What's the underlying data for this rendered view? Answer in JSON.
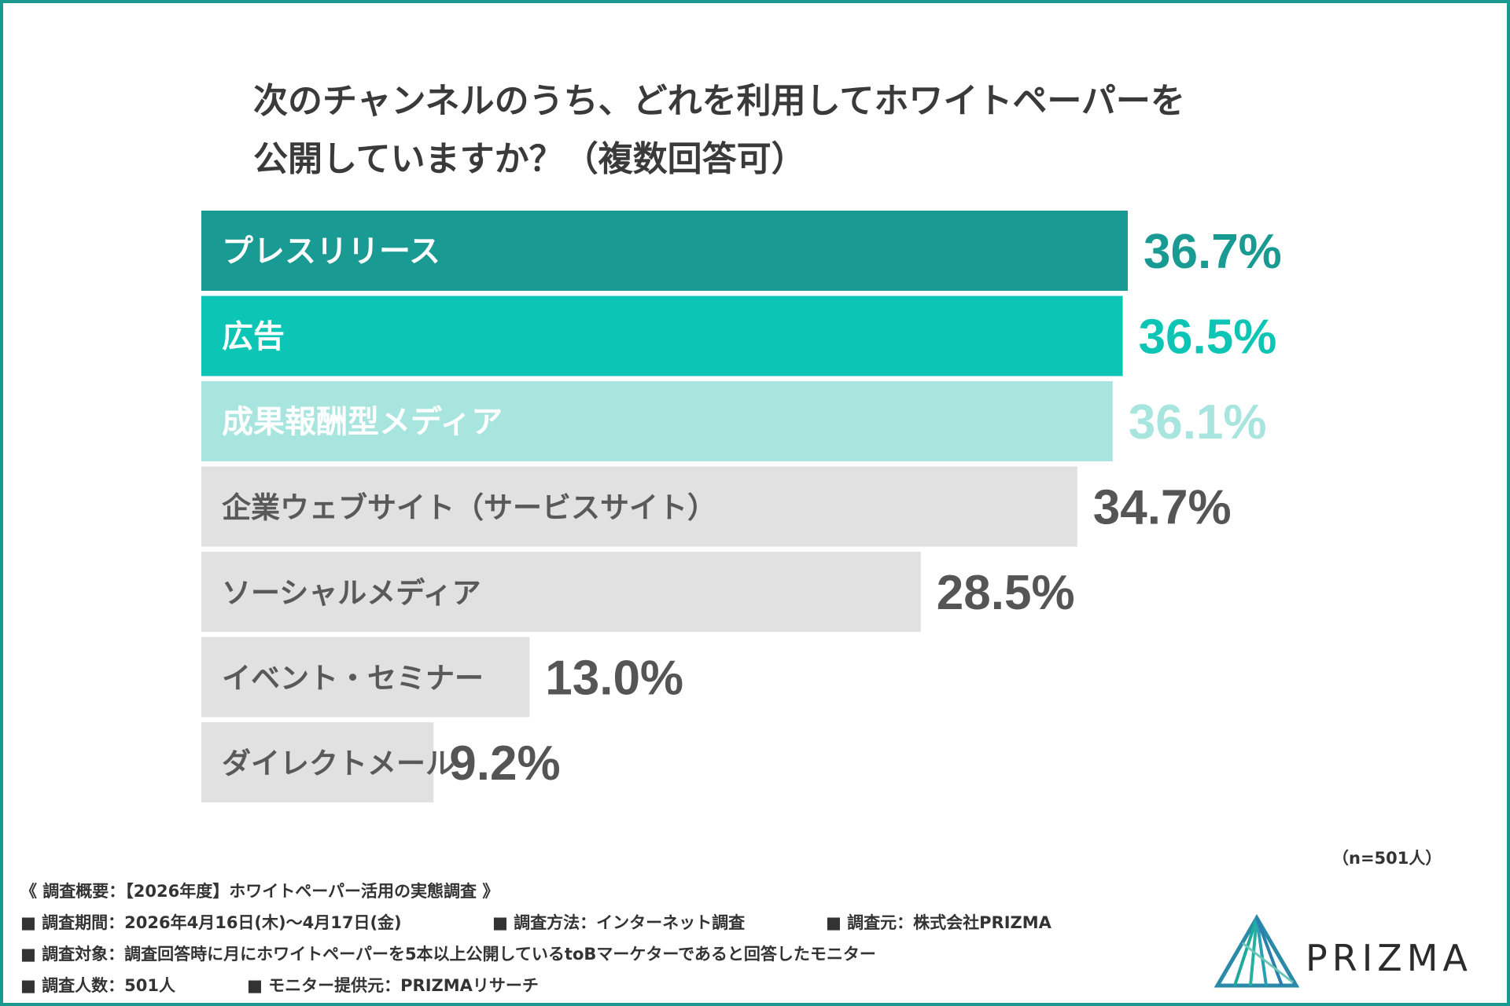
{
  "title": {
    "line1": "次のチャンネルのうち、どれを利用してホワイトペーパーを",
    "line2": "公開していますか？（複数回答可）"
  },
  "chart_data": {
    "type": "bar",
    "orientation": "horizontal",
    "title": "次のチャンネルのうち、どれを利用してホワイトペーパーを公開していますか？（複数回答可）",
    "categories": [
      "プレスリリース",
      "広告",
      "成果報酬型メディア",
      "企業ウェブサイト（サービスサイト）",
      "ソーシャルメディア",
      "イベント・セミナー",
      "ダイレクトメール"
    ],
    "values": [
      36.7,
      36.5,
      36.1,
      34.7,
      28.5,
      13.0,
      9.2
    ],
    "value_labels": [
      "36.7%",
      "36.5%",
      "36.1%",
      "34.7%",
      "28.5%",
      "13.0%",
      "9.2%"
    ],
    "unit": "%",
    "bar_colors": [
      "#199a92",
      "#0dc5b4",
      "#a8e5de",
      "#e1e1e1",
      "#e1e1e1",
      "#e1e1e1",
      "#e1e1e1"
    ],
    "label_colors": [
      "#ffffff",
      "#ffffff",
      "#ffffff",
      "#595959",
      "#595959",
      "#595959",
      "#595959"
    ],
    "value_colors": [
      "#199a92",
      "#0dc5b4",
      "#a8e5de",
      "#555555",
      "#555555",
      "#555555",
      "#555555"
    ]
  },
  "sample": "（n=501人）",
  "footer": {
    "overview": "《 調査概要：【2026年度】ホワイトペーパー活用の実態調査 》",
    "period": "■ 調査期間：2026年4月16日(木)〜4月17日(金)",
    "method": "■ 調査方法：インターネット調査",
    "source": "■ 調査元：株式会社PRIZMA",
    "target": "■ 調査対象：調査回答時に月にホワイトペーパーを5本以上公開しているtoBマーケターであると回答したモニター",
    "count": "■ 調査人数：501人",
    "provider": "■ モニター提供元：PRIZMAリサーチ"
  },
  "logo": {
    "text": "PRIZMA",
    "icon": "prizma-triangle-icon"
  },
  "colors": {
    "border": "#1a9a8f",
    "title": "#3a3a3a"
  }
}
